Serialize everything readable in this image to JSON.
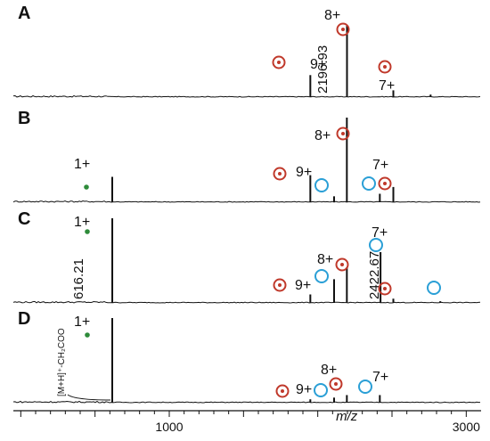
{
  "chart_data": {
    "type": "mass-spectrum-stack",
    "xlabel": "m/z",
    "xlim": [
      -50,
      3100
    ],
    "x_ticks": [
      1000,
      3000
    ],
    "colors": {
      "trace": "#111111",
      "dot_circle": "#c0392b",
      "open_circle": "#2a9fd6",
      "green_dot": "#2e8b3a"
    },
    "panels": [
      {
        "label": "A",
        "peaks": [
          {
            "mz": 1950,
            "h": 0.26,
            "charge": "9+",
            "marker": "dot-circle"
          },
          {
            "mz": 2196.93,
            "h": 0.85,
            "charge": "8+",
            "marker": "dot-circle",
            "mass_label": "2196.93"
          },
          {
            "mz": 2509,
            "h": 0.08,
            "charge": "7+",
            "marker": "dot-circle"
          },
          {
            "mz": 2760,
            "h": 0.03
          }
        ]
      },
      {
        "label": "B",
        "peaks": [
          {
            "mz": 616,
            "h": 0.3,
            "charge": "1+",
            "marker": "green-dot"
          },
          {
            "mz": 1950,
            "h": 0.32,
            "charge": "9+",
            "marker": "dot-circle"
          },
          {
            "mz": 2110,
            "h": 0.07,
            "marker": "open-circle"
          },
          {
            "mz": 2196,
            "h": 1.0,
            "charge": "8+",
            "marker": "dot-circle"
          },
          {
            "mz": 2418,
            "h": 0.1,
            "charge": "7+",
            "marker": "open-circle"
          },
          {
            "mz": 2509,
            "h": 0.18,
            "marker": "dot-circle"
          }
        ]
      },
      {
        "label": "C",
        "peaks": [
          {
            "mz": 616.21,
            "h": 1.0,
            "charge": "1+",
            "marker": "green-dot",
            "mass_label": "616.21"
          },
          {
            "mz": 1950,
            "h": 0.1,
            "charge": "9+",
            "marker": "dot-circle"
          },
          {
            "mz": 2110,
            "h": 0.28,
            "marker": "open-circle"
          },
          {
            "mz": 2196,
            "h": 0.42,
            "charge": "8+",
            "marker": "dot-circle"
          },
          {
            "mz": 2422.67,
            "h": 0.6,
            "charge": "7+",
            "marker": "open-circle",
            "mass_label": "2422.67"
          },
          {
            "mz": 2509,
            "h": 0.05,
            "marker": "dot-circle"
          },
          {
            "mz": 2825,
            "h": 0.02,
            "marker": "open-circle"
          }
        ]
      },
      {
        "label": "D",
        "peaks": [
          {
            "mz": 616,
            "h": 1.0,
            "charge": "1+",
            "marker": "green-dot",
            "note": "[M+H]⁺-CH₂COO"
          },
          {
            "mz": 1950,
            "h": 0.04,
            "charge": "9+",
            "marker": "dot-circle"
          },
          {
            "mz": 2110,
            "h": 0.06,
            "marker": "open-circle"
          },
          {
            "mz": 2196,
            "h": 0.09,
            "charge": "8+",
            "marker": "dot-circle"
          },
          {
            "mz": 2418,
            "h": 0.09,
            "charge": "7+",
            "marker": "open-circle"
          }
        ]
      }
    ]
  }
}
